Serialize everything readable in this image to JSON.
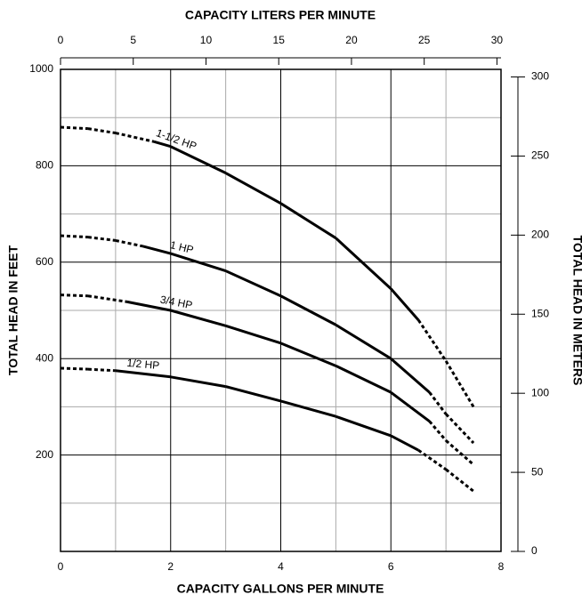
{
  "chart_data": {
    "type": "line",
    "x_label": "CAPACITY GALLONS PER MINUTE",
    "x2_label": "CAPACITY LITERS PER MINUTE",
    "y_label": "TOTAL HEAD IN FEET",
    "y2_label": "TOTAL HEAD IN METERS",
    "xlim": [
      0,
      8
    ],
    "xticks": [
      0,
      2,
      4,
      6,
      8
    ],
    "xminor": [
      1,
      3,
      5,
      7
    ],
    "ylim": [
      0,
      1000
    ],
    "yticks": [
      200,
      400,
      600,
      800,
      1000
    ],
    "yminor": [
      100,
      300,
      500,
      700,
      900
    ],
    "x2lim": [
      0,
      30.28
    ],
    "x2ticks": [
      0,
      5,
      10,
      15,
      20,
      25,
      30
    ],
    "y2lim": [
      0,
      304.8
    ],
    "y2ticks": [
      0,
      50,
      100,
      150,
      200,
      250,
      300
    ],
    "grid": true,
    "color": "#000000",
    "series": [
      {
        "name": "1-1/2 HP",
        "x": [
          0,
          0.5,
          1,
          1.7,
          2,
          3,
          4,
          5,
          6,
          6.5,
          7,
          7.5
        ],
        "values": [
          880,
          877,
          868,
          850,
          840,
          785,
          722,
          650,
          545,
          480,
          395,
          300
        ],
        "styles": [
          "dotted",
          "dotted",
          "dotted",
          "solid",
          "solid",
          "solid",
          "solid",
          "solid",
          "solid",
          "dotted",
          "dotted"
        ]
      },
      {
        "name": "1 HP",
        "x": [
          0,
          0.5,
          1,
          1.5,
          2,
          3,
          4,
          5,
          6,
          6.7,
          7,
          7.5
        ],
        "values": [
          655,
          652,
          645,
          633,
          618,
          582,
          530,
          470,
          400,
          330,
          285,
          225
        ],
        "styles": [
          "dotted",
          "dotted",
          "dotted",
          "solid",
          "solid",
          "solid",
          "solid",
          "solid",
          "solid",
          "dotted",
          "dotted"
        ]
      },
      {
        "name": "3/4 HP",
        "x": [
          0,
          0.5,
          1.2,
          2,
          3,
          4,
          5,
          6,
          6.7,
          7,
          7.5
        ],
        "values": [
          532,
          530,
          518,
          500,
          468,
          432,
          385,
          330,
          270,
          230,
          180
        ],
        "styles": [
          "dotted",
          "dotted",
          "solid",
          "solid",
          "solid",
          "solid",
          "solid",
          "solid",
          "dotted",
          "dotted"
        ]
      },
      {
        "name": "1/2 HP",
        "x": [
          0,
          0.5,
          1,
          2,
          3,
          4,
          5,
          6,
          6.5,
          7,
          7.5
        ],
        "values": [
          380,
          378,
          375,
          362,
          342,
          312,
          280,
          240,
          210,
          170,
          125
        ],
        "styles": [
          "dotted",
          "dotted",
          "solid",
          "solid",
          "solid",
          "solid",
          "solid",
          "solid",
          "dotted",
          "dotted"
        ]
      }
    ]
  }
}
